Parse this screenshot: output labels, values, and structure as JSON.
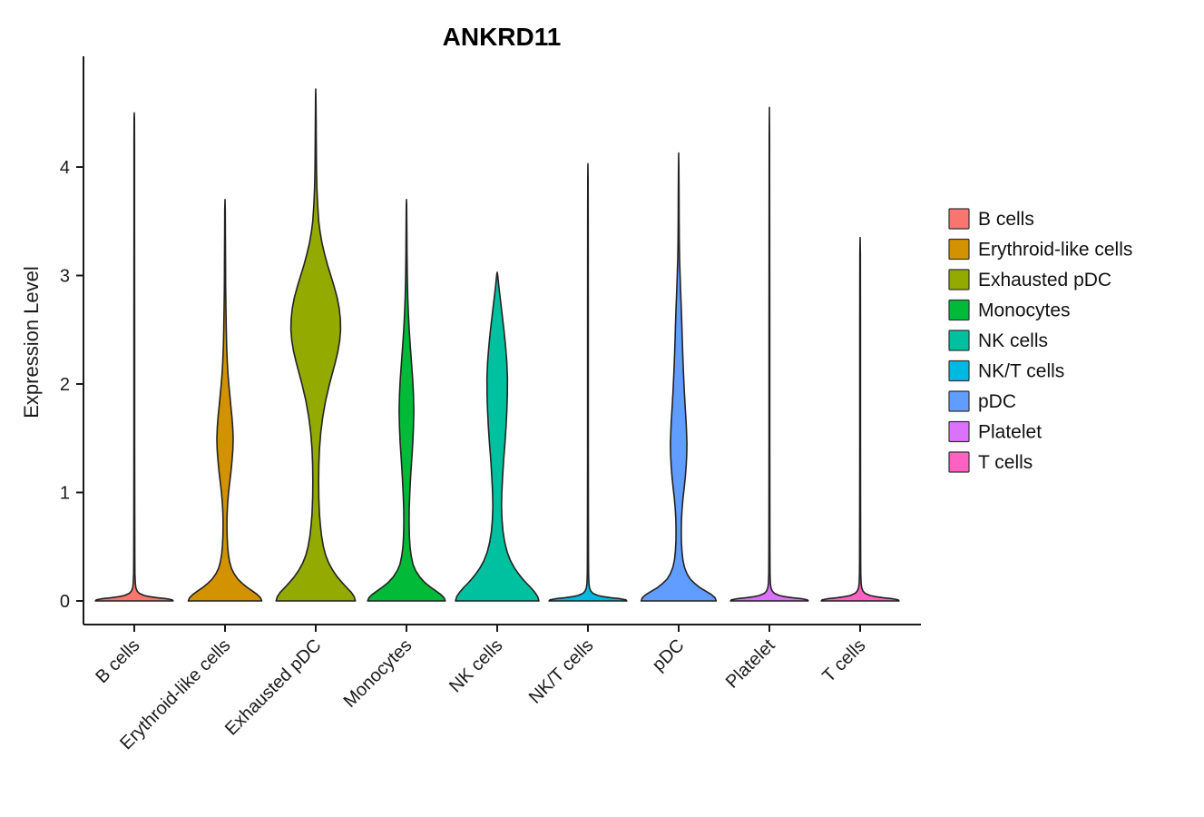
{
  "title": "ANKRD11",
  "legend": {
    "position": "right",
    "items": [
      {
        "label": "B cells",
        "color": "#F8766D"
      },
      {
        "label": "Erythroid-like cells",
        "color": "#D39200"
      },
      {
        "label": "Exhausted pDC",
        "color": "#93AA00"
      },
      {
        "label": "Monocytes",
        "color": "#00BA38"
      },
      {
        "label": "NK cells",
        "color": "#00C19F"
      },
      {
        "label": "NK/T cells",
        "color": "#00B9E3"
      },
      {
        "label": "pDC",
        "color": "#619CFF"
      },
      {
        "label": "Platelet",
        "color": "#DB72FB"
      },
      {
        "label": "T cells",
        "color": "#FF61C3"
      }
    ]
  },
  "chart_data": {
    "type": "violin",
    "title": "ANKRD11",
    "xlabel": "",
    "ylabel": "Expression Level",
    "ylim": [
      0,
      4.9
    ],
    "y_ticks": [
      0,
      1,
      2,
      3,
      4
    ],
    "x_tick_rotation": 45,
    "grid": false,
    "legend_position": "right",
    "outline_color": "#222222",
    "axis_color": "#1a1a1a",
    "categories": [
      "B cells",
      "Erythroid-like cells",
      "Exhausted pDC",
      "Monocytes",
      "NK cells",
      "NK/T cells",
      "pDC",
      "Platelet",
      "T cells"
    ],
    "series": [
      {
        "name": "B cells",
        "color": "#F8766D",
        "max_expression": 4.5,
        "profile": [
          [
            0,
            0.93
          ],
          [
            0.01,
            0.91
          ],
          [
            0.02,
            0.78
          ],
          [
            0.03,
            0.55
          ],
          [
            0.04,
            0.36
          ],
          [
            0.05,
            0.24
          ],
          [
            0.07,
            0.12
          ],
          [
            0.09,
            0.07
          ],
          [
            0.12,
            0.04
          ],
          [
            0.16,
            0.025
          ],
          [
            0.25,
            0.015
          ],
          [
            0.4,
            0.012
          ],
          [
            0.8,
            0.01
          ],
          [
            1.5,
            0.009
          ],
          [
            2.5,
            0.008
          ],
          [
            3.5,
            0.007
          ],
          [
            4.2,
            0.006
          ],
          [
            4.45,
            0.004
          ],
          [
            4.5,
            0.0
          ]
        ]
      },
      {
        "name": "Erythroid-like cells",
        "color": "#D39200",
        "max_expression": 3.7,
        "profile": [
          [
            0,
            0.88
          ],
          [
            0.03,
            0.85
          ],
          [
            0.06,
            0.77
          ],
          [
            0.09,
            0.66
          ],
          [
            0.12,
            0.55
          ],
          [
            0.16,
            0.42
          ],
          [
            0.2,
            0.31
          ],
          [
            0.25,
            0.22
          ],
          [
            0.3,
            0.155
          ],
          [
            0.36,
            0.11
          ],
          [
            0.43,
            0.08
          ],
          [
            0.5,
            0.062
          ],
          [
            0.6,
            0.05
          ],
          [
            0.7,
            0.046
          ],
          [
            0.8,
            0.05
          ],
          [
            0.9,
            0.062
          ],
          [
            1.0,
            0.085
          ],
          [
            1.1,
            0.115
          ],
          [
            1.2,
            0.145
          ],
          [
            1.3,
            0.17
          ],
          [
            1.4,
            0.19
          ],
          [
            1.5,
            0.195
          ],
          [
            1.6,
            0.185
          ],
          [
            1.7,
            0.165
          ],
          [
            1.8,
            0.14
          ],
          [
            1.9,
            0.115
          ],
          [
            2.0,
            0.09
          ],
          [
            2.1,
            0.07
          ],
          [
            2.2,
            0.055
          ],
          [
            2.35,
            0.04
          ],
          [
            2.5,
            0.03
          ],
          [
            2.7,
            0.022
          ],
          [
            2.9,
            0.016
          ],
          [
            3.1,
            0.012
          ],
          [
            3.4,
            0.009
          ],
          [
            3.6,
            0.006
          ],
          [
            3.7,
            0.0
          ]
        ]
      },
      {
        "name": "Exhausted pDC",
        "color": "#93AA00",
        "max_expression": 4.72,
        "profile": [
          [
            0,
            0.95
          ],
          [
            0.04,
            0.92
          ],
          [
            0.08,
            0.85
          ],
          [
            0.12,
            0.75
          ],
          [
            0.17,
            0.63
          ],
          [
            0.22,
            0.52
          ],
          [
            0.28,
            0.41
          ],
          [
            0.35,
            0.31
          ],
          [
            0.42,
            0.24
          ],
          [
            0.5,
            0.185
          ],
          [
            0.6,
            0.14
          ],
          [
            0.7,
            0.11
          ],
          [
            0.8,
            0.09
          ],
          [
            0.95,
            0.075
          ],
          [
            1.1,
            0.07
          ],
          [
            1.25,
            0.075
          ],
          [
            1.4,
            0.09
          ],
          [
            1.55,
            0.12
          ],
          [
            1.7,
            0.17
          ],
          [
            1.85,
            0.24
          ],
          [
            2.0,
            0.33
          ],
          [
            2.1,
            0.4
          ],
          [
            2.2,
            0.47
          ],
          [
            2.3,
            0.53
          ],
          [
            2.4,
            0.575
          ],
          [
            2.5,
            0.595
          ],
          [
            2.6,
            0.59
          ],
          [
            2.7,
            0.56
          ],
          [
            2.8,
            0.51
          ],
          [
            2.9,
            0.44
          ],
          [
            3.0,
            0.36
          ],
          [
            3.1,
            0.28
          ],
          [
            3.2,
            0.21
          ],
          [
            3.3,
            0.15
          ],
          [
            3.4,
            0.105
          ],
          [
            3.5,
            0.072
          ],
          [
            3.65,
            0.045
          ],
          [
            3.8,
            0.028
          ],
          [
            4.0,
            0.017
          ],
          [
            4.2,
            0.012
          ],
          [
            4.45,
            0.008
          ],
          [
            4.65,
            0.005
          ],
          [
            4.72,
            0.0
          ]
        ]
      },
      {
        "name": "Monocytes",
        "color": "#00BA38",
        "max_expression": 3.7,
        "profile": [
          [
            0,
            0.93
          ],
          [
            0.03,
            0.9
          ],
          [
            0.06,
            0.82
          ],
          [
            0.09,
            0.71
          ],
          [
            0.13,
            0.57
          ],
          [
            0.17,
            0.44
          ],
          [
            0.22,
            0.32
          ],
          [
            0.28,
            0.22
          ],
          [
            0.34,
            0.155
          ],
          [
            0.42,
            0.11
          ],
          [
            0.5,
            0.085
          ],
          [
            0.6,
            0.07
          ],
          [
            0.72,
            0.062
          ],
          [
            0.85,
            0.065
          ],
          [
            1.0,
            0.08
          ],
          [
            1.15,
            0.1
          ],
          [
            1.3,
            0.125
          ],
          [
            1.45,
            0.15
          ],
          [
            1.6,
            0.168
          ],
          [
            1.75,
            0.175
          ],
          [
            1.9,
            0.168
          ],
          [
            2.05,
            0.148
          ],
          [
            2.2,
            0.12
          ],
          [
            2.35,
            0.092
          ],
          [
            2.5,
            0.066
          ],
          [
            2.65,
            0.045
          ],
          [
            2.8,
            0.03
          ],
          [
            3.0,
            0.02
          ],
          [
            3.2,
            0.014
          ],
          [
            3.45,
            0.009
          ],
          [
            3.65,
            0.005
          ],
          [
            3.7,
            0.0
          ]
        ]
      },
      {
        "name": "NK cells",
        "color": "#00C19F",
        "max_expression": 3.03,
        "profile": [
          [
            0,
            1.0
          ],
          [
            0.04,
            0.97
          ],
          [
            0.08,
            0.9
          ],
          [
            0.13,
            0.79
          ],
          [
            0.18,
            0.66
          ],
          [
            0.24,
            0.53
          ],
          [
            0.3,
            0.42
          ],
          [
            0.37,
            0.32
          ],
          [
            0.45,
            0.24
          ],
          [
            0.54,
            0.18
          ],
          [
            0.64,
            0.14
          ],
          [
            0.75,
            0.115
          ],
          [
            0.87,
            0.105
          ],
          [
            1.0,
            0.11
          ],
          [
            1.15,
            0.13
          ],
          [
            1.3,
            0.155
          ],
          [
            1.45,
            0.185
          ],
          [
            1.6,
            0.21
          ],
          [
            1.75,
            0.23
          ],
          [
            1.9,
            0.243
          ],
          [
            2.05,
            0.245
          ],
          [
            2.2,
            0.23
          ],
          [
            2.35,
            0.2
          ],
          [
            2.5,
            0.16
          ],
          [
            2.65,
            0.115
          ],
          [
            2.8,
            0.07
          ],
          [
            2.9,
            0.04
          ],
          [
            3.0,
            0.012
          ],
          [
            3.03,
            0.0
          ]
        ]
      },
      {
        "name": "NK/T cells",
        "color": "#00B9E3",
        "max_expression": 4.03,
        "profile": [
          [
            0,
            0.93
          ],
          [
            0.01,
            0.91
          ],
          [
            0.02,
            0.78
          ],
          [
            0.03,
            0.55
          ],
          [
            0.04,
            0.36
          ],
          [
            0.05,
            0.24
          ],
          [
            0.07,
            0.12
          ],
          [
            0.09,
            0.07
          ],
          [
            0.12,
            0.04
          ],
          [
            0.16,
            0.025
          ],
          [
            0.25,
            0.015
          ],
          [
            0.4,
            0.012
          ],
          [
            0.8,
            0.01
          ],
          [
            1.5,
            0.009
          ],
          [
            2.5,
            0.008
          ],
          [
            3.5,
            0.007
          ],
          [
            3.9,
            0.005
          ],
          [
            4.03,
            0.0
          ]
        ]
      },
      {
        "name": "pDC",
        "color": "#619CFF",
        "max_expression": 4.13,
        "profile": [
          [
            0,
            0.9
          ],
          [
            0.03,
            0.87
          ],
          [
            0.06,
            0.78
          ],
          [
            0.09,
            0.65
          ],
          [
            0.12,
            0.52
          ],
          [
            0.16,
            0.39
          ],
          [
            0.2,
            0.28
          ],
          [
            0.25,
            0.2
          ],
          [
            0.31,
            0.14
          ],
          [
            0.38,
            0.1
          ],
          [
            0.46,
            0.078
          ],
          [
            0.55,
            0.065
          ],
          [
            0.65,
            0.062
          ],
          [
            0.75,
            0.068
          ],
          [
            0.85,
            0.082
          ],
          [
            0.95,
            0.105
          ],
          [
            1.05,
            0.135
          ],
          [
            1.15,
            0.16
          ],
          [
            1.25,
            0.18
          ],
          [
            1.35,
            0.193
          ],
          [
            1.45,
            0.197
          ],
          [
            1.55,
            0.19
          ],
          [
            1.65,
            0.178
          ],
          [
            1.8,
            0.155
          ],
          [
            1.95,
            0.133
          ],
          [
            2.1,
            0.115
          ],
          [
            2.25,
            0.1
          ],
          [
            2.4,
            0.088
          ],
          [
            2.55,
            0.075
          ],
          [
            2.7,
            0.062
          ],
          [
            2.85,
            0.048
          ],
          [
            3.0,
            0.034
          ],
          [
            3.15,
            0.022
          ],
          [
            3.3,
            0.015
          ],
          [
            3.5,
            0.011
          ],
          [
            3.75,
            0.008
          ],
          [
            4.0,
            0.005
          ],
          [
            4.13,
            0.0
          ]
        ]
      },
      {
        "name": "Platelet",
        "color": "#DB72FB",
        "max_expression": 4.55,
        "profile": [
          [
            0,
            0.93
          ],
          [
            0.01,
            0.91
          ],
          [
            0.02,
            0.78
          ],
          [
            0.03,
            0.55
          ],
          [
            0.04,
            0.36
          ],
          [
            0.05,
            0.24
          ],
          [
            0.07,
            0.12
          ],
          [
            0.09,
            0.07
          ],
          [
            0.12,
            0.04
          ],
          [
            0.16,
            0.025
          ],
          [
            0.25,
            0.015
          ],
          [
            0.4,
            0.012
          ],
          [
            0.8,
            0.01
          ],
          [
            1.5,
            0.009
          ],
          [
            2.5,
            0.008
          ],
          [
            3.5,
            0.007
          ],
          [
            4.3,
            0.005
          ],
          [
            4.55,
            0.0
          ]
        ]
      },
      {
        "name": "T cells",
        "color": "#FF61C3",
        "max_expression": 3.35,
        "profile": [
          [
            0,
            0.93
          ],
          [
            0.01,
            0.91
          ],
          [
            0.02,
            0.78
          ],
          [
            0.03,
            0.55
          ],
          [
            0.04,
            0.36
          ],
          [
            0.05,
            0.24
          ],
          [
            0.07,
            0.12
          ],
          [
            0.09,
            0.07
          ],
          [
            0.12,
            0.04
          ],
          [
            0.16,
            0.025
          ],
          [
            0.25,
            0.015
          ],
          [
            0.4,
            0.012
          ],
          [
            0.8,
            0.01
          ],
          [
            1.6,
            0.009
          ],
          [
            2.6,
            0.008
          ],
          [
            3.2,
            0.006
          ],
          [
            3.35,
            0.0
          ]
        ]
      }
    ]
  }
}
